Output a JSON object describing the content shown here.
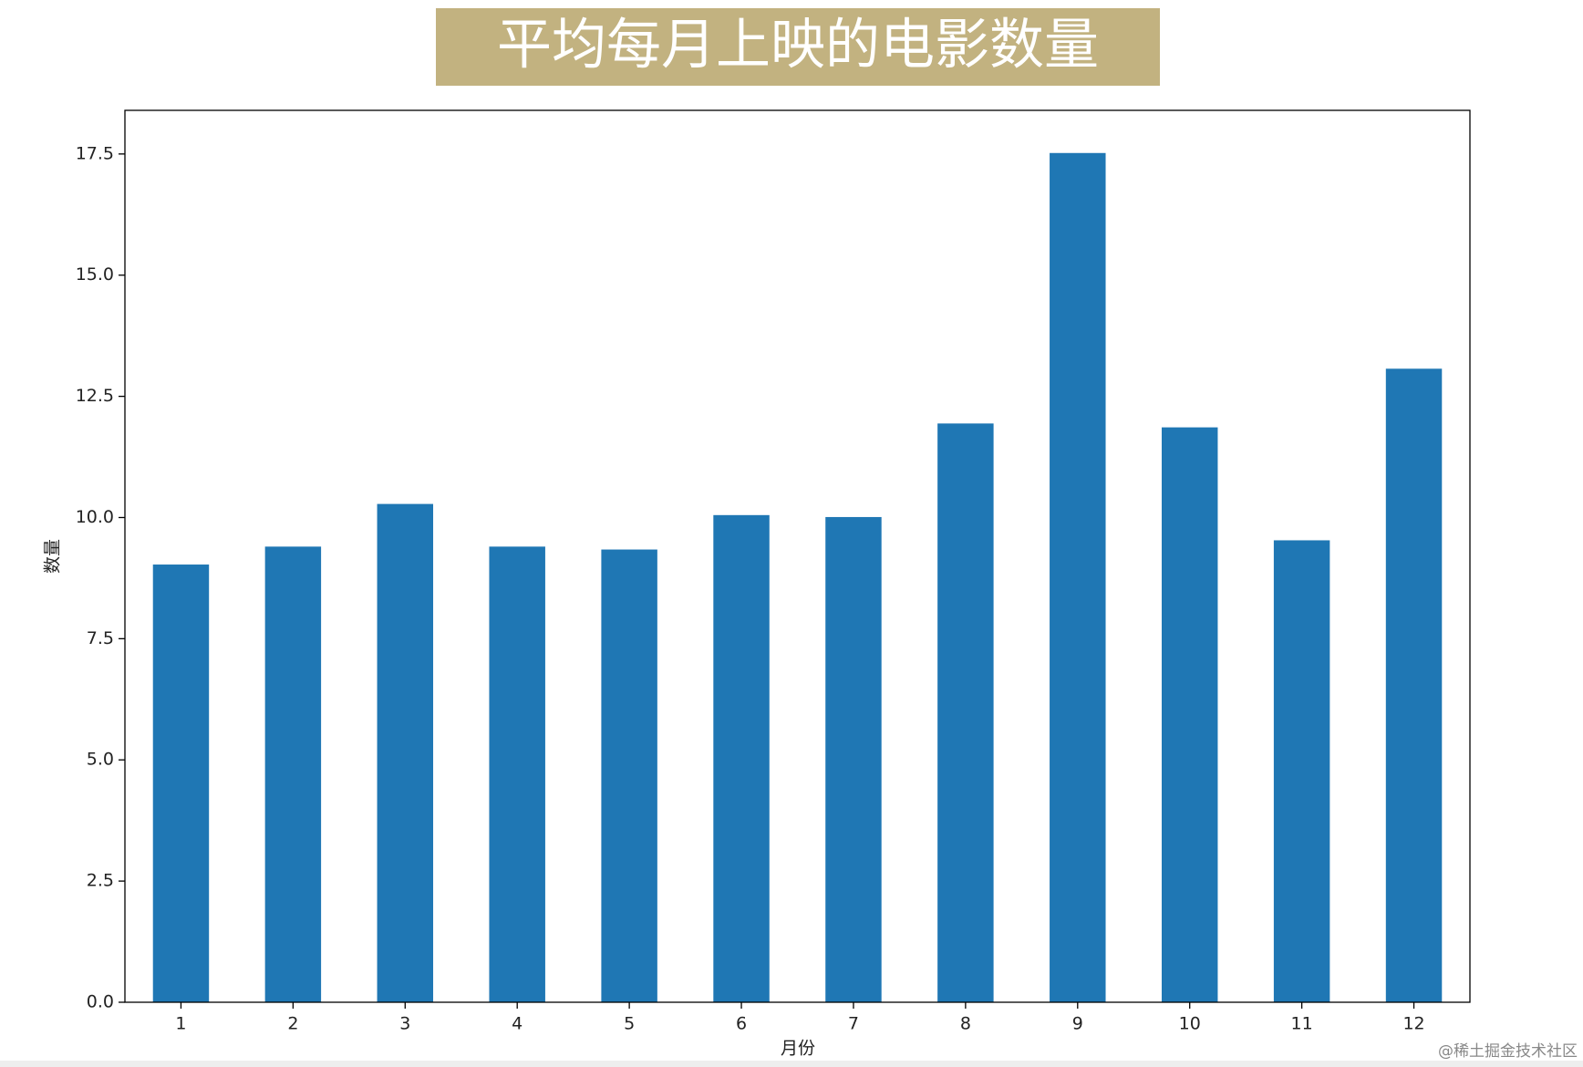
{
  "chart_data": {
    "type": "bar",
    "title": "平均每月上映的电影数量",
    "title_background": "#c2b280",
    "x_label": "月份",
    "y_label": "数量",
    "categories": [
      "1",
      "2",
      "3",
      "4",
      "5",
      "6",
      "7",
      "8",
      "9",
      "10",
      "11",
      "12"
    ],
    "values": [
      9.03,
      9.4,
      10.28,
      9.4,
      9.34,
      10.05,
      10.01,
      11.94,
      17.52,
      11.86,
      9.53,
      13.07
    ],
    "color": "#1f77b4",
    "ylim": [
      0,
      18.4
    ],
    "yticks": [
      {
        "value": 0,
        "label": "0.0"
      },
      {
        "value": 2.5,
        "label": "2.5"
      },
      {
        "value": 5,
        "label": "5.0"
      },
      {
        "value": 7.5,
        "label": "7.5"
      },
      {
        "value": 10,
        "label": "10.0"
      },
      {
        "value": 12.5,
        "label": "12.5"
      },
      {
        "value": 15,
        "label": "15.0"
      },
      {
        "value": 17.5,
        "label": "17.5"
      }
    ],
    "grid": false
  },
  "watermark": "@稀土掘金技术社区"
}
